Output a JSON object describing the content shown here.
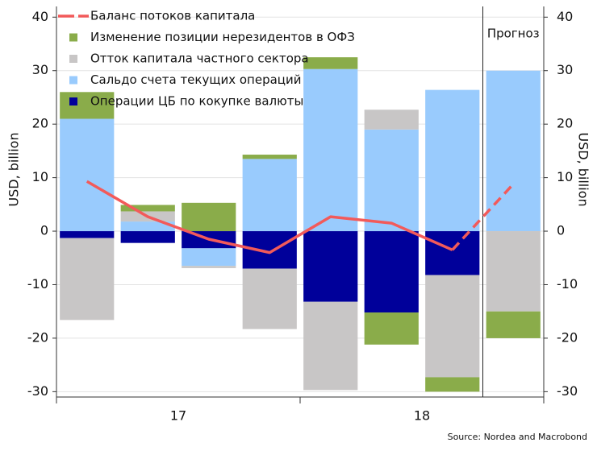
{
  "chart_data": {
    "type": "bar",
    "legend": "upper left",
    "grid": true,
    "ylabel": "USD, billion",
    "y2label": "USD, billion",
    "forecast_label": "Прогноз",
    "source": "Source: Nordea and Macrobond",
    "categories": [
      null,
      null,
      null,
      null,
      null,
      null,
      null,
      null
    ],
    "x_groups": [
      "17",
      "18"
    ],
    "ylim": [
      -31,
      42
    ],
    "yticks": [
      -30,
      -20,
      -10,
      0,
      10,
      20,
      30,
      40
    ],
    "y2lim": [
      -31,
      42
    ],
    "y2ticks": [
      -30,
      -20,
      -10,
      0,
      10,
      20,
      30,
      40
    ],
    "line": {
      "name": "Баланс потоков капитала",
      "color": "#f25a5a",
      "forecast_start": 6,
      "values": [
        9.3,
        2.7,
        -1.5,
        -4,
        2.7,
        1.5,
        -3.5,
        8.8
      ]
    },
    "series": [
      {
        "name": "Изменение позиции нерезидентов в ОФЗ",
        "color": "#8aac4a",
        "values": [
          5,
          1.2,
          5.3,
          0.8,
          2.2,
          -6,
          -2.7,
          -5
        ]
      },
      {
        "name": "Отток капитала частного сектора",
        "color": "#c8c6c6",
        "values": [
          -15.3,
          1.9,
          -0.4,
          -11.3,
          -16.5,
          3.7,
          -19.1,
          -15
        ]
      },
      {
        "name": "Сальдо счета текущих операций",
        "color": "#99cbfd",
        "values": [
          21,
          1.8,
          -3.3,
          13.5,
          30.3,
          19,
          26.4,
          30
        ]
      },
      {
        "name": "Операции ЦБ по кокупке валюты",
        "color": "#00009a",
        "values": [
          -1.3,
          -2.2,
          -3.2,
          -7,
          -13.2,
          -15.2,
          -8.2,
          0
        ]
      }
    ]
  }
}
